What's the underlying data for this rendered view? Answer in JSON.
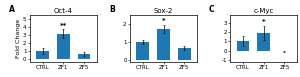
{
  "chart_data": [
    {
      "type": "bar",
      "label": "A",
      "title": "Oct-4",
      "ylabel": "Fold Change",
      "categories": [
        "CTRL",
        "ZF1",
        "ZF5"
      ],
      "values": [
        1.0,
        3.2,
        0.6
      ],
      "errors": [
        0.35,
        0.55,
        0.25
      ],
      "ylim": [
        -0.3,
        5.5
      ],
      "yticks": [
        0,
        1,
        2,
        3,
        4,
        5
      ],
      "significance": [
        null,
        "**",
        null
      ]
    },
    {
      "type": "bar",
      "label": "B",
      "title": "Sox-2",
      "categories": [
        "CTRL",
        "ZF1",
        "ZF5"
      ],
      "values": [
        1.0,
        1.75,
        0.65
      ],
      "errors": [
        0.12,
        0.22,
        0.12
      ],
      "ylim": [
        -0.1,
        2.5
      ],
      "yticks": [
        0,
        1,
        2
      ],
      "significance": [
        null,
        "*",
        null
      ]
    },
    {
      "type": "bar",
      "label": "C",
      "title": "c-Myc",
      "categories": [
        "CTRL",
        "ZF1",
        "ZF5"
      ],
      "values": [
        1.0,
        1.9,
        -0.08
      ],
      "errors": [
        0.55,
        0.75,
        0.05
      ],
      "ylim": [
        -1.2,
        3.8
      ],
      "yticks": [
        -1,
        0,
        1,
        2,
        3
      ],
      "significance": [
        null,
        "*",
        null
      ]
    }
  ]
}
